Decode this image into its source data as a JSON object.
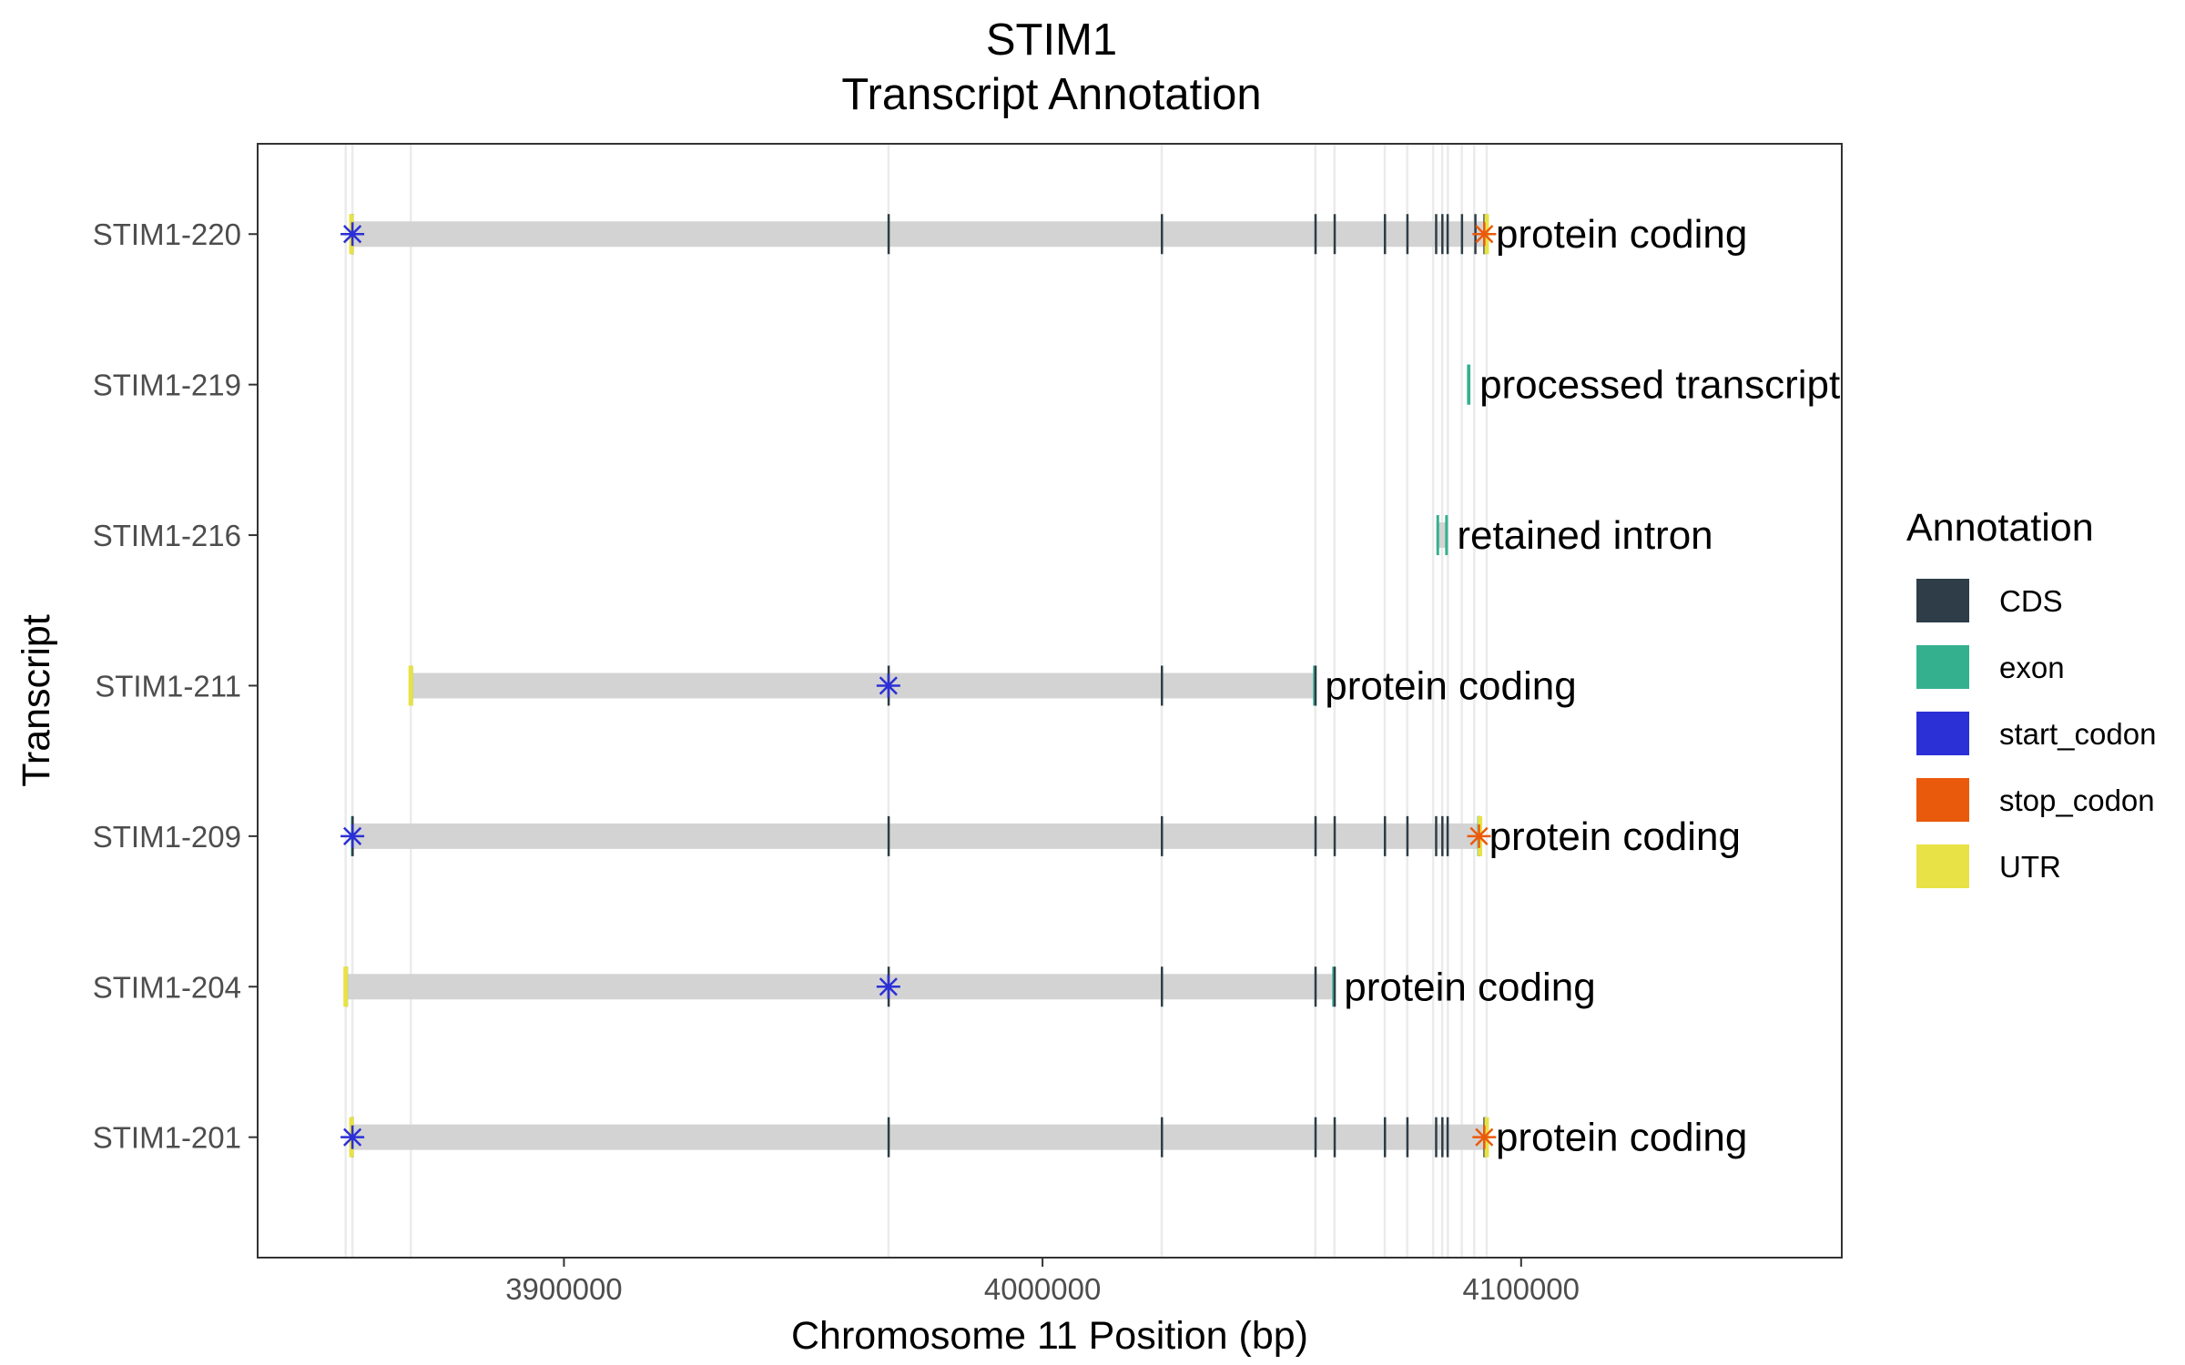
{
  "chart_data": {
    "type": "gene-track",
    "title": "STIM1",
    "subtitle": "Transcript Annotation",
    "xlabel": "Chromosome 11 Position (bp)",
    "ylabel": "Transcript",
    "xlim": [
      3836000,
      4167000
    ],
    "x_ticks": [
      3900000,
      4000000,
      4100000
    ],
    "x_tick_labels": [
      "3900000",
      "4000000",
      "4100000"
    ],
    "grid": true,
    "exon_positions": [
      3854400,
      3855800,
      3868000,
      3967800,
      4024900,
      4057000,
      4061000,
      4071500,
      4076200,
      4081600,
      4083500,
      4084700,
      4087600,
      4090200,
      4092800
    ],
    "transcripts": [
      {
        "name": "STIM1-220",
        "biotype": "protein coding",
        "start": 3855500,
        "end": 4092800,
        "start_codon": 3855800,
        "stop_codon": 4092300,
        "cds": [
          3855800,
          3967800,
          4024900,
          4057000,
          4061000,
          4071500,
          4076200,
          4082200,
          4083500,
          4084600,
          4087600,
          4090400,
          4092300
        ],
        "utr": [
          3855600,
          4092800
        ]
      },
      {
        "name": "STIM1-219",
        "biotype": "processed transcript",
        "start": 4088700,
        "end": 4089400,
        "start_codon": null,
        "stop_codon": null,
        "cds": [],
        "utr": []
      },
      {
        "name": "STIM1-216",
        "biotype": "retained intron",
        "start": 4082300,
        "end": 4084700,
        "start_codon": null,
        "stop_codon": null,
        "cds": [],
        "utr": []
      },
      {
        "name": "STIM1-211",
        "biotype": "protein coding",
        "start": 3867900,
        "end": 4057100,
        "start_codon": 3967800,
        "stop_codon": null,
        "cds": [
          3967800,
          4024900,
          4057000
        ],
        "utr": [
          3868000
        ]
      },
      {
        "name": "STIM1-209",
        "biotype": "protein coding",
        "start": 3855500,
        "end": 4091400,
        "start_codon": 3855800,
        "stop_codon": 4091200,
        "cds": [
          3855800,
          3967800,
          4024900,
          4057000,
          4061000,
          4071500,
          4076200,
          4082200,
          4083500,
          4084600,
          4091200
        ],
        "utr": [
          4091400
        ]
      },
      {
        "name": "STIM1-204",
        "biotype": "protein coding",
        "start": 3854300,
        "end": 4061100,
        "start_codon": 3967800,
        "stop_codon": null,
        "cds": [
          3967800,
          4024900,
          4057000,
          4061000
        ],
        "utr": [
          3854400
        ]
      },
      {
        "name": "STIM1-201",
        "biotype": "protein coding",
        "start": 3855500,
        "end": 4092800,
        "start_codon": 3855800,
        "stop_codon": 4092300,
        "cds": [
          3855800,
          3967800,
          4024900,
          4057000,
          4061000,
          4071500,
          4076200,
          4082200,
          4083500,
          4084600,
          4092300
        ],
        "utr": [
          3855600,
          4092800
        ]
      }
    ],
    "legend": {
      "title": "Annotation",
      "position": "right",
      "items": [
        {
          "label": "CDS",
          "color": "#2e3d47"
        },
        {
          "label": "exon",
          "color": "#35b08f"
        },
        {
          "label": "start_codon",
          "color": "#2b2fd6"
        },
        {
          "label": "stop_codon",
          "color": "#ea5a0d"
        },
        {
          "label": "UTR",
          "color": "#e8e246"
        }
      ]
    },
    "colors": {
      "intron_bar": "#d3d3d3",
      "grid": "#ebebeb",
      "panel_border": "#333333"
    }
  }
}
